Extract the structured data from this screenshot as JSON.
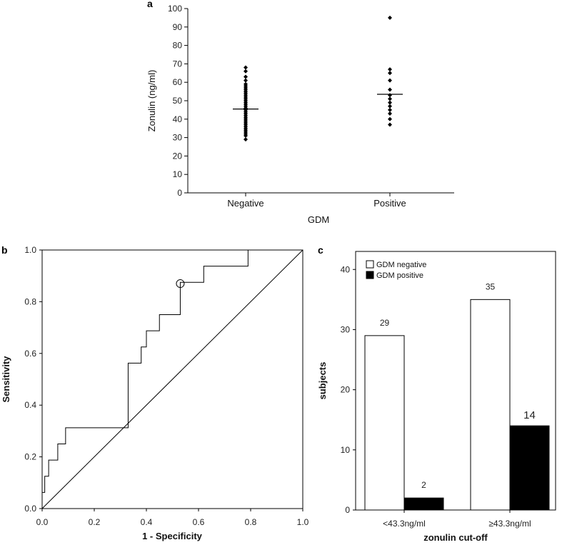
{
  "panels": {
    "a": "a",
    "b": "b",
    "c": "c"
  },
  "chart_data": [
    {
      "panel": "a",
      "type": "scatter",
      "xlabel": "GDM",
      "ylabel": "Zonulin (ng/ml)",
      "ylim": [
        0,
        100
      ],
      "yticks": [
        0,
        10,
        20,
        30,
        40,
        50,
        60,
        70,
        80,
        90,
        100
      ],
      "categories": [
        "Negative",
        "Positive"
      ],
      "series": [
        {
          "category": "Negative",
          "values": [
            68,
            66,
            63,
            61,
            59,
            58,
            57,
            56,
            55,
            54,
            53,
            52,
            51,
            50,
            49,
            48,
            47,
            46,
            45,
            44,
            43,
            42,
            41,
            40,
            39,
            38,
            37,
            36,
            35,
            34,
            33,
            32,
            31,
            29
          ],
          "mean": 45.5
        },
        {
          "category": "Positive",
          "values": [
            95,
            67,
            65,
            61,
            56,
            53,
            51,
            49,
            47,
            45,
            43,
            40,
            37
          ],
          "mean": 53.5
        }
      ]
    },
    {
      "panel": "b",
      "type": "line",
      "xlabel": "1 - Specificity",
      "ylabel": "Sensitivity",
      "xlim": [
        0,
        1
      ],
      "ylim": [
        0,
        1
      ],
      "xticks": [
        "0.0",
        "0.2",
        "0.4",
        "0.6",
        "0.8",
        "1.0"
      ],
      "yticks": [
        "0.0",
        "0.2",
        "0.4",
        "0.6",
        "0.8",
        "1.0"
      ],
      "roc_x": [
        0,
        0,
        0.01,
        0.01,
        0.025,
        0.025,
        0.04,
        0.04,
        0.06,
        0.06,
        0.09,
        0.09,
        0.32,
        0.32,
        0.33,
        0.33,
        0.38,
        0.38,
        0.4,
        0.4,
        0.43,
        0.43,
        0.45,
        0.45,
        0.53,
        0.53,
        0.62,
        0.62,
        0.79,
        0.79,
        1.0
      ],
      "roc_y": [
        0,
        0.0625,
        0.0625,
        0.125,
        0.125,
        0.1875,
        0.1875,
        0.1875,
        0.1875,
        0.25,
        0.25,
        0.3125,
        0.3125,
        0.3125,
        0.3125,
        0.5625,
        0.5625,
        0.625,
        0.625,
        0.6875,
        0.6875,
        0.6875,
        0.6875,
        0.75,
        0.75,
        0.875,
        0.875,
        0.9375,
        0.9375,
        1.0,
        1.0
      ],
      "cutoff_point": [
        0.53,
        0.87
      ],
      "reference_line": [
        [
          0,
          0
        ],
        [
          1,
          1
        ]
      ]
    },
    {
      "panel": "c",
      "type": "bar",
      "xlabel": "zonulin cut-off",
      "ylabel": "subjects",
      "ylim": [
        0,
        43
      ],
      "yticks": [
        0,
        10,
        20,
        30,
        40
      ],
      "categories": [
        "<43.3ng/ml",
        "≥43.3ng/ml"
      ],
      "series": [
        {
          "name": "GDM negative",
          "color": "#ffffff",
          "values": [
            29,
            35
          ],
          "labels": [
            "29",
            "35"
          ]
        },
        {
          "name": "GDM positive",
          "color": "#000000",
          "values": [
            2,
            14
          ],
          "labels": [
            "2",
            "14"
          ]
        }
      ],
      "legend": "top-left"
    }
  ]
}
